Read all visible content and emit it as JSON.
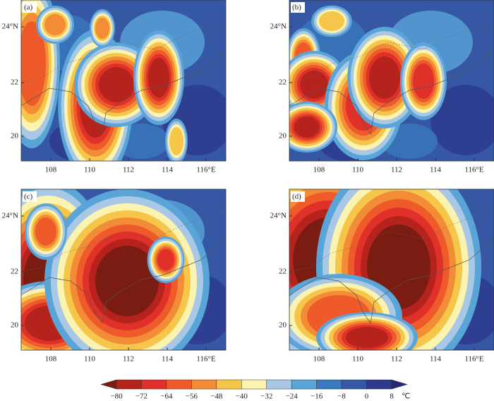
{
  "panels": [
    {
      "label": "(a)"
    },
    {
      "label": "(b)"
    },
    {
      "label": "(c)"
    },
    {
      "label": "(d)"
    }
  ],
  "lon_ticks": [
    "108",
    "110",
    "112",
    "114",
    "116°E"
  ],
  "lat_ticks": [
    "24°N",
    "22",
    "20"
  ],
  "colorbar": {
    "labels": [
      "−80",
      "−72",
      "−64",
      "−56",
      "−48",
      "−40",
      "−32",
      "−24",
      "−16",
      "−8",
      "0",
      "8"
    ],
    "unit": "℃",
    "colors": [
      "#7b1c12",
      "#b5231c",
      "#e0302a",
      "#ee5a2a",
      "#f28c36",
      "#f5c64a",
      "#fbf3b0",
      "#a8c8e6",
      "#5aa5d8",
      "#3b78bd",
      "#3657a3",
      "#2d3a8c",
      "#262776"
    ]
  }
}
